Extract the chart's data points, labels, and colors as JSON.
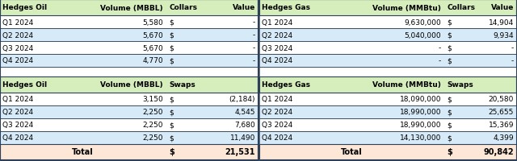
{
  "oil_collars_header": [
    "Hedges Oil",
    "Volume (MBBL)",
    "Collars",
    "Value"
  ],
  "oil_collars_rows": [
    [
      "Q1 2024",
      "5,580",
      "$",
      "-"
    ],
    [
      "Q2 2024",
      "5,670",
      "$",
      "-"
    ],
    [
      "Q3 2024",
      "5,670",
      "$",
      "-"
    ],
    [
      "Q4 2024",
      "4,770",
      "$",
      "-"
    ]
  ],
  "oil_swaps_header": [
    "Hedges Oil",
    "Volume (MBBL)",
    "Swaps",
    ""
  ],
  "oil_swaps_rows": [
    [
      "Q1 2024",
      "3,150",
      "$",
      "(2,184)"
    ],
    [
      "Q2 2024",
      "2,250",
      "$",
      "4,545"
    ],
    [
      "Q3 2024",
      "2,250",
      "$",
      "7,680"
    ],
    [
      "Q4 2024",
      "2,250",
      "$",
      "11,490"
    ]
  ],
  "oil_total": [
    "Total",
    "",
    "$",
    "21,531"
  ],
  "gas_collars_header": [
    "Hedges Gas",
    "Volume (MMBtu)",
    "Collars",
    "Value"
  ],
  "gas_collars_rows": [
    [
      "Q1 2024",
      "9,630,000",
      "$",
      "14,904"
    ],
    [
      "Q2 2024",
      "5,040,000",
      "$",
      "9,934"
    ],
    [
      "Q3 2024",
      "-",
      "$",
      "-"
    ],
    [
      "Q4 2024",
      "-",
      "$",
      "-"
    ]
  ],
  "gas_swaps_header": [
    "Hedges Gas",
    "Volume (MMBtu)",
    "Swaps",
    ""
  ],
  "gas_swaps_rows": [
    [
      "Q1 2024",
      "18,090,000",
      "$",
      "20,580"
    ],
    [
      "Q2 2024",
      "18,990,000",
      "$",
      "25,655"
    ],
    [
      "Q3 2024",
      "18,990,000",
      "$",
      "15,369"
    ],
    [
      "Q4 2024",
      "14,130,000",
      "$",
      "4,399"
    ]
  ],
  "gas_total": [
    "Total",
    "",
    "$",
    "90,842"
  ],
  "header_bg": "#d6edbc",
  "row_bg_white": "#ffffff",
  "row_bg_blue": "#d6eaf8",
  "total_bg": "#fde8d8",
  "border_color": "#2e4057",
  "gap_bg": "#ffffff"
}
